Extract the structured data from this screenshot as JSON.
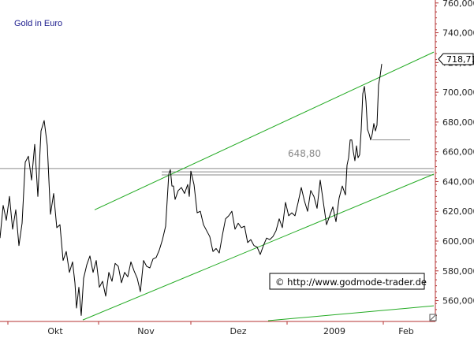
{
  "chart_data": {
    "type": "line",
    "title": "Gold in Euro",
    "xlabel": "",
    "ylabel": "",
    "ylim": [
      546,
      762
    ],
    "ytick_labels": [
      "560,000",
      "580,000",
      "600,000",
      "620,000",
      "640,000",
      "660,000",
      "680,000",
      "700,000",
      "720,000",
      "740,000",
      "760,000"
    ],
    "yticks": [
      560,
      580,
      600,
      620,
      640,
      660,
      680,
      700,
      720,
      740,
      760
    ],
    "xtick_labels": [
      "Okt",
      "Nov",
      "Dez",
      "2009",
      "Feb"
    ],
    "xticks": [
      70,
      185,
      302,
      424,
      515
    ],
    "last_price_label": "718,71",
    "last_price": 718.71,
    "level_label": "648,80",
    "horizontal_levels": [
      {
        "y": 648.8,
        "x_from": 0,
        "x_to": 550
      },
      {
        "y": 646.5,
        "x_from": 205,
        "x_to": 550
      },
      {
        "y": 644.5,
        "x_from": 205,
        "x_to": 550
      },
      {
        "y": 668,
        "x_from": 472,
        "x_to": 520
      }
    ],
    "trend_lines": [
      {
        "x1": 120,
        "y1": 621,
        "x2": 550,
        "y2": 727
      },
      {
        "x1": 105,
        "y1": 547,
        "x2": 550,
        "y2": 645
      },
      {
        "x1": 340,
        "y1": 546.5,
        "x2": 550,
        "y2": 556.5
      }
    ],
    "grid": false,
    "legend": "none",
    "watermark": "© http://www.godmode-trader.de",
    "colors": {
      "price_line": "#000000",
      "trend_line": "#22aa22",
      "horizontal_line": "#8a8a8a",
      "axis": "#b43232",
      "title": "#1a1a8c"
    },
    "series": [
      {
        "name": "",
        "x": [
          0,
          4,
          8,
          12,
          16,
          20,
          24,
          28,
          32,
          36,
          40,
          44,
          48,
          52,
          56,
          60,
          64,
          68,
          72,
          76,
          80,
          84,
          88,
          92,
          95,
          97,
          100,
          103,
          106,
          110,
          114,
          118,
          122,
          126,
          130,
          134,
          138,
          142,
          146,
          150,
          154,
          158,
          162,
          166,
          170,
          174,
          178,
          182,
          186,
          190,
          194,
          198,
          202,
          206,
          210,
          214,
          216,
          218,
          220,
          222,
          226,
          230,
          234,
          238,
          240,
          242,
          246,
          250,
          254,
          258,
          262,
          266,
          270,
          274,
          278,
          282,
          286,
          290,
          294,
          298,
          302,
          306,
          310,
          314,
          318,
          322,
          326,
          330,
          334,
          338,
          342,
          346,
          350,
          354,
          358,
          362,
          366,
          370,
          374,
          378,
          382,
          386,
          390,
          394,
          398,
          402,
          406,
          410,
          414,
          418,
          422,
          426,
          430,
          434,
          438,
          440,
          442,
          444,
          446,
          448,
          450,
          452,
          454,
          456,
          458,
          460,
          462,
          464,
          466,
          468,
          470,
          472,
          474,
          476,
          478,
          480,
          482,
          484
        ],
        "y": [
          602,
          624,
          614,
          630,
          608,
          621,
          597,
          612,
          653,
          657,
          641,
          665,
          630,
          674,
          681,
          664,
          618,
          632,
          609,
          611,
          587,
          593,
          579,
          586,
          572,
          555,
          569,
          550,
          575,
          584,
          590,
          579,
          587,
          569,
          573,
          563,
          579,
          573,
          585,
          583,
          572,
          579,
          576,
          586,
          580,
          575,
          566,
          587,
          583,
          582,
          588,
          589,
          594,
          601,
          610,
          645,
          648,
          637,
          637,
          628,
          634,
          636,
          632,
          638,
          630,
          647,
          638,
          619,
          620,
          611,
          607,
          603,
          593,
          595,
          592,
          604,
          615,
          617,
          620,
          608,
          612,
          609,
          610,
          599,
          601,
          597,
          596,
          591,
          597,
          602,
          601,
          603,
          607,
          615,
          609,
          626,
          617,
          619,
          617,
          626,
          636,
          627,
          620,
          634,
          630,
          622,
          641,
          626,
          611,
          617,
          623,
          613,
          629,
          637,
          631,
          651,
          656,
          668,
          668,
          660,
          654,
          664,
          656,
          658,
          675,
          699,
          704,
          694,
          675,
          672,
          668,
          672,
          679,
          674,
          678,
          705,
          711,
          719
        ]
      }
    ]
  }
}
